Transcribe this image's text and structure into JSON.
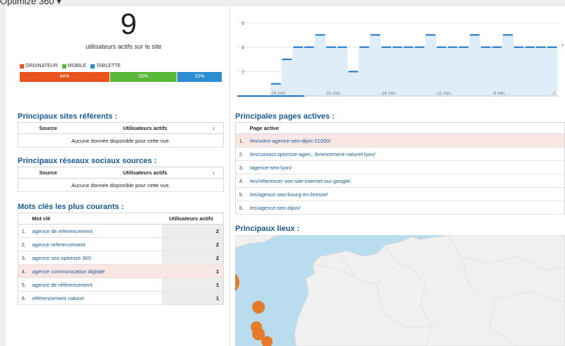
{
  "header": {
    "app_title": "Optimize 360"
  },
  "realtime": {
    "active_users": "9",
    "active_label": "utilisateurs actifs sur le site",
    "devices": [
      {
        "label": "ORDINATEUR",
        "pct": "44%",
        "value": 44,
        "color": "#e8521c"
      },
      {
        "label": "MOBILE",
        "pct": "33%",
        "value": 33,
        "color": "#58b736"
      },
      {
        "label": "TABLETTE",
        "pct": "22%",
        "value": 22,
        "color": "#2b8cd0"
      }
    ]
  },
  "chart_data": {
    "type": "area",
    "x_ticks": [
      "-26 min",
      "-21 min",
      "-16 min",
      "-11 min",
      "-6 min",
      "-1"
    ],
    "y_ticks": [
      "6",
      "4",
      "2"
    ],
    "ylim": [
      0,
      6.7
    ],
    "x": [
      -29,
      -28,
      -27,
      -26,
      -25,
      -24,
      -23,
      -22,
      -21,
      -20,
      -19,
      -18,
      -17,
      -16,
      -15,
      -14,
      -13,
      -12,
      -11,
      -10,
      -9,
      -8,
      -7,
      -6,
      -5,
      -4,
      -3,
      -2,
      -1
    ],
    "values": [
      0,
      0,
      0,
      1,
      3,
      4,
      4,
      5,
      4,
      4,
      2,
      4,
      5,
      4,
      4,
      4,
      4,
      5,
      4,
      4,
      4,
      5,
      4,
      4,
      5,
      4,
      4,
      4,
      4
    ],
    "color": "#1a73c8",
    "fill": "#deedf8",
    "grid": true
  },
  "referrers": {
    "title": "Principaux sites référents :",
    "col_source": "Source",
    "col_users": "Utilisateurs actifs",
    "empty": "Aucune donnée disponible pour cette vue."
  },
  "social": {
    "title": "Principaux réseaux sociaux sources :",
    "col_source": "Source",
    "col_users": "Utilisateurs actifs",
    "empty": "Aucune donnée disponible pour cette vue."
  },
  "keywords": {
    "title": "Mots clés les plus courants :",
    "col_keyword": "Mot clé",
    "col_users": "Utilisateurs actifs",
    "rows": [
      {
        "n": "1.",
        "kw": "agence de referencement",
        "v": "2"
      },
      {
        "n": "2.",
        "kw": "agence referencement",
        "v": "2"
      },
      {
        "n": "3.",
        "kw": "agence seo optimize 360",
        "v": "2"
      },
      {
        "n": "4.",
        "kw": "agence communication digitale",
        "v": "1"
      },
      {
        "n": "5.",
        "kw": "agence de référencement",
        "v": "1"
      },
      {
        "n": "6.",
        "kw": "référencement naturel",
        "v": "1"
      }
    ]
  },
  "pages": {
    "title": "Principales pages actives :",
    "col_page": "Page active",
    "rows": [
      {
        "n": "1.",
        "url": "/en/votre-agence-seo-dijon-21000/"
      },
      {
        "n": "2.",
        "url": "/en/contact-optimize-agen...ferencement-naturel-lyon/"
      },
      {
        "n": "3.",
        "url": "/agence-seo-lyon/"
      },
      {
        "n": "4.",
        "url": "/en/referencer-son-site-internet-sur-google/"
      },
      {
        "n": "5.",
        "url": "/es/agence-seo-bourg-en-bresse/"
      },
      {
        "n": "6.",
        "url": "/es/agence-seo-dijon/"
      }
    ]
  },
  "locations": {
    "title": "Principaux lieux :",
    "marker_color": "#e57b2b",
    "map_land": "#f0f0f0",
    "map_water": "#b9dcee"
  }
}
